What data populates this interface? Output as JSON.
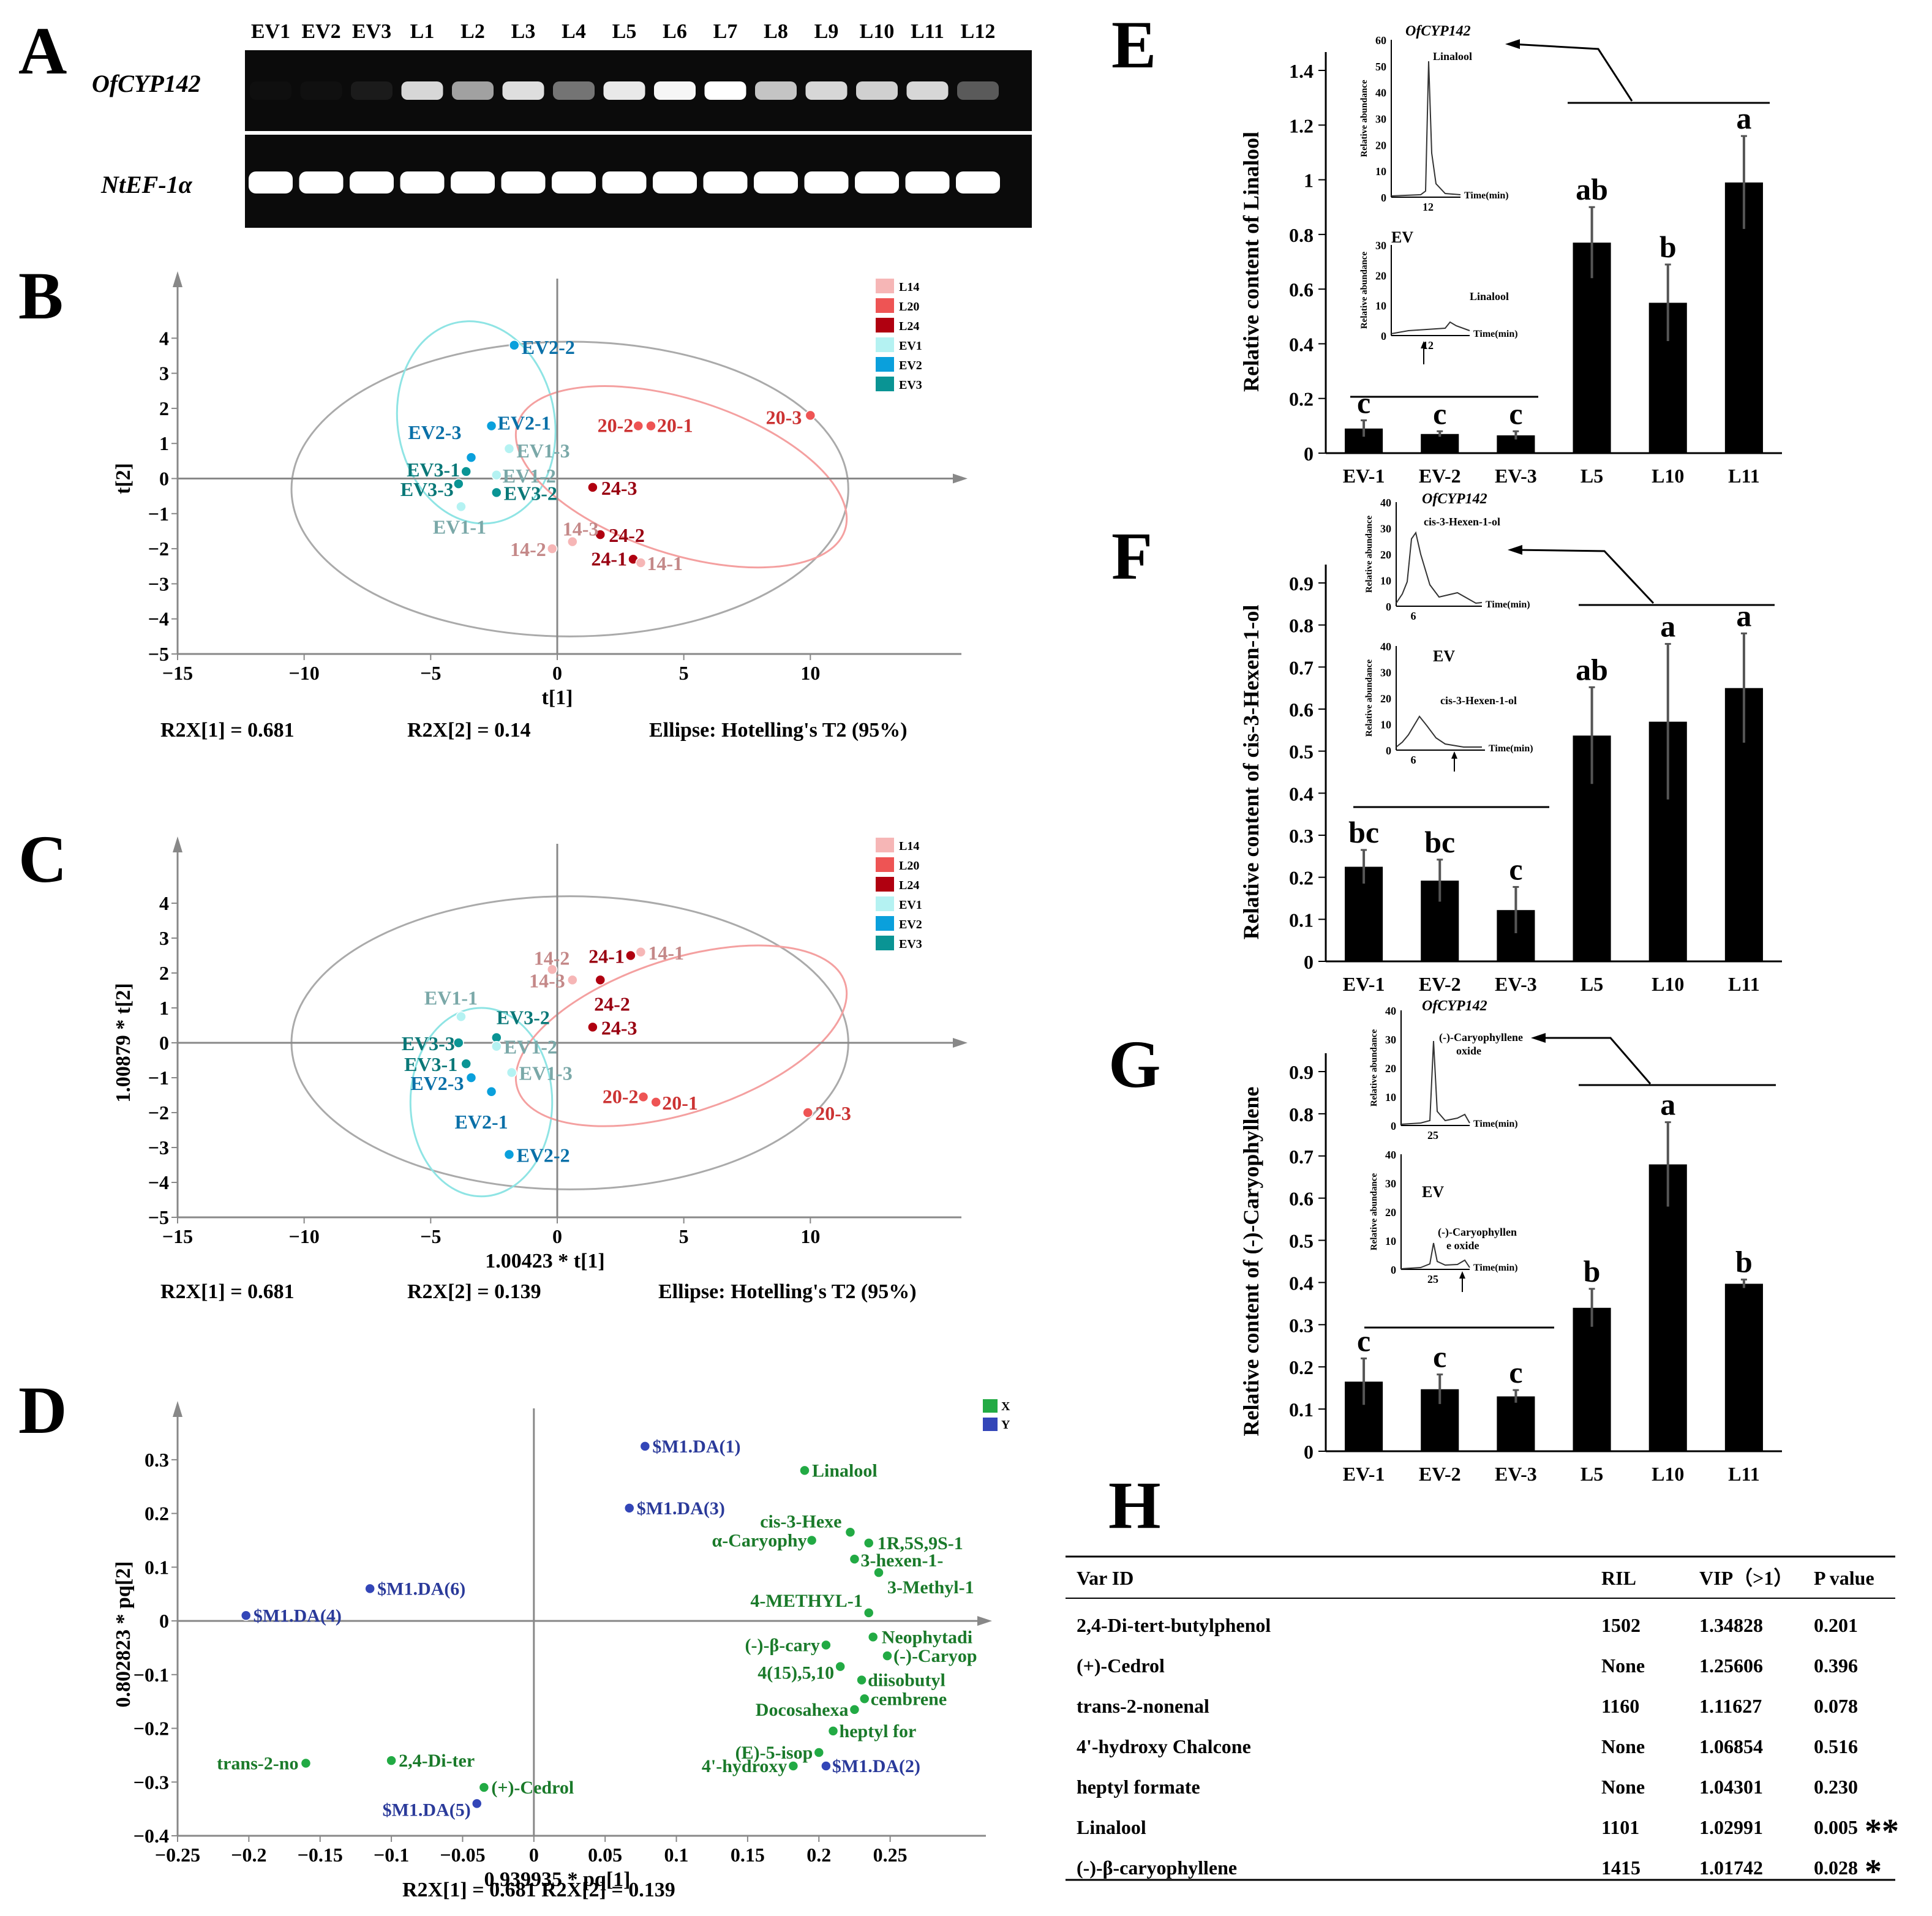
{
  "colors": {
    "L14": "#f6b6b6",
    "L20": "#ee5454",
    "L24": "#b00010",
    "EV1": "#b4f2f2",
    "EV2": "#0aa0dc",
    "EV3": "#0a9494",
    "X": "#22aa44",
    "Y": "#3346b8",
    "ellipseGray": "#aaaaaa",
    "ellipseCyan": "#8fe4e4",
    "ellipsePink": "#f4a0a0",
    "lblL14": "#c48888",
    "lblL20": "#cc3333",
    "lblL24": "#990011",
    "lblEV1": "#7aa8a8",
    "lblEV2": "#0a70a8",
    "lblEV3": "#0a7878",
    "lblX": "#1a7a2a",
    "lblY": "#2a3a9a"
  },
  "panels": {
    "A": "A",
    "B": "B",
    "C": "C",
    "D": "D",
    "E": "E",
    "F": "F",
    "G": "G",
    "H": "H"
  },
  "gel": {
    "lanes": [
      "EV1",
      "EV2",
      "EV3",
      "L1",
      "L2",
      "L3",
      "L4",
      "L5",
      "L6",
      "L7",
      "L8",
      "L9",
      "L10",
      "L11",
      "L12"
    ],
    "gene1": "OfCYP142",
    "gene2": "NtEF-1α",
    "gene1_intensity": [
      0.02,
      0.05,
      0.15,
      0.9,
      0.75,
      0.92,
      0.6,
      0.95,
      0.98,
      1.0,
      0.85,
      0.9,
      0.88,
      0.9,
      0.5
    ],
    "gene2_intensity": [
      1,
      1,
      1,
      1,
      1,
      1,
      1,
      1,
      1,
      1,
      1,
      1,
      1,
      1,
      1
    ]
  },
  "legend": {
    "items": [
      "L14",
      "L20",
      "L24",
      "EV1",
      "EV2",
      "EV3"
    ]
  },
  "chart_data": [
    {
      "id": "B",
      "type": "scatter",
      "xlabel": "t[1]",
      "ylabel": "t[2]",
      "xlim": [
        -15,
        15
      ],
      "ylim": [
        -5,
        5
      ],
      "xticks": [
        -15,
        -10,
        -5,
        0,
        5,
        10
      ],
      "yticks": [
        -5,
        -4,
        -3,
        -2,
        -1,
        0,
        1,
        2,
        3,
        4
      ],
      "footer": {
        "r2x1": "R2X[1] = 0.681",
        "r2x2": "R2X[2] = 0.14",
        "ellipse": "Ellipse: Hotelling's T2 (95%)"
      },
      "points": [
        {
          "label": "EV2-2",
          "g": "EV2",
          "x": -1.7,
          "y": 3.8
        },
        {
          "label": "EV2-1",
          "g": "EV2",
          "x": -2.6,
          "y": 1.5
        },
        {
          "label": "EV2-3",
          "g": "EV2",
          "x": -3.4,
          "y": 0.6
        },
        {
          "label": "EV1-3",
          "g": "EV1",
          "x": -1.9,
          "y": 0.85
        },
        {
          "label": "EV1-2",
          "g": "EV1",
          "x": -2.4,
          "y": 0.1
        },
        {
          "label": "EV3-1",
          "g": "EV3",
          "x": -3.6,
          "y": 0.2
        },
        {
          "label": "EV3-3",
          "g": "EV3",
          "x": -3.9,
          "y": -0.15
        },
        {
          "label": "EV3-2",
          "g": "EV3",
          "x": -2.4,
          "y": -0.4
        },
        {
          "label": "EV1-1",
          "g": "EV1",
          "x": -3.8,
          "y": -0.8
        },
        {
          "label": "20-2",
          "g": "L20",
          "x": 3.2,
          "y": 1.5
        },
        {
          "label": "20-1",
          "g": "L20",
          "x": 3.7,
          "y": 1.5
        },
        {
          "label": "20-3",
          "g": "L20",
          "x": 10.0,
          "y": 1.8
        },
        {
          "label": "24-3",
          "g": "L24",
          "x": 1.4,
          "y": -0.25
        },
        {
          "label": "24-2",
          "g": "L24",
          "x": 1.7,
          "y": -1.6
        },
        {
          "label": "24-1",
          "g": "L24",
          "x": 3.0,
          "y": -2.3
        },
        {
          "label": "14-3",
          "g": "L14",
          "x": 0.6,
          "y": -1.8
        },
        {
          "label": "14-2",
          "g": "L14",
          "x": -0.2,
          "y": -2.0
        },
        {
          "label": "14-1",
          "g": "L14",
          "x": 3.3,
          "y": -2.4
        }
      ]
    },
    {
      "id": "C",
      "type": "scatter",
      "xlabel": "1.00423 * t[1]",
      "ylabel": "1.00879 * t[2]",
      "xlim": [
        -15,
        15
      ],
      "ylim": [
        -5,
        5
      ],
      "xticks": [
        -15,
        -10,
        -5,
        0,
        5,
        10
      ],
      "yticks": [
        -5,
        -4,
        -3,
        -2,
        -1,
        0,
        1,
        2,
        3,
        4
      ],
      "footer": {
        "r2x1": "R2X[1] = 0.681",
        "r2x2": "R2X[2] = 0.139",
        "ellipse": "Ellipse: Hotelling's T2 (95%)"
      },
      "points": [
        {
          "label": "14-2",
          "g": "L14",
          "x": -0.2,
          "y": 2.1
        },
        {
          "label": "24-1",
          "g": "L24",
          "x": 2.9,
          "y": 2.5
        },
        {
          "label": "14-1",
          "g": "L14",
          "x": 3.3,
          "y": 2.6
        },
        {
          "label": "14-3",
          "g": "L14",
          "x": 0.6,
          "y": 1.8
        },
        {
          "label": "24-2",
          "g": "L24",
          "x": 1.7,
          "y": 1.8
        },
        {
          "label": "24-3",
          "g": "L24",
          "x": 1.4,
          "y": 0.45
        },
        {
          "label": "EV1-1",
          "g": "EV1",
          "x": -3.8,
          "y": 0.75
        },
        {
          "label": "EV3-2",
          "g": "EV3",
          "x": -2.4,
          "y": 0.15
        },
        {
          "label": "EV3-3",
          "g": "EV3",
          "x": -3.9,
          "y": 0
        },
        {
          "label": "EV1-2",
          "g": "EV1",
          "x": -2.4,
          "y": -0.1
        },
        {
          "label": "EV3-1",
          "g": "EV3",
          "x": -3.6,
          "y": -0.6
        },
        {
          "label": "EV1-3",
          "g": "EV1",
          "x": -1.8,
          "y": -0.85
        },
        {
          "label": "EV2-3",
          "g": "EV2",
          "x": -3.4,
          "y": -1.0
        },
        {
          "label": "EV2-1",
          "g": "EV2",
          "x": -2.6,
          "y": -1.4
        },
        {
          "label": "20-2",
          "g": "L20",
          "x": 3.4,
          "y": -1.55
        },
        {
          "label": "20-1",
          "g": "L20",
          "x": 3.9,
          "y": -1.7
        },
        {
          "label": "20-3",
          "g": "L20",
          "x": 9.9,
          "y": -2.0
        },
        {
          "label": "EV2-2",
          "g": "EV2",
          "x": -1.9,
          "y": -3.2
        }
      ]
    },
    {
      "id": "D",
      "type": "scatter",
      "xlabel": "0.939935 * pq[1]",
      "ylabel": "0.802823 * pq[2]",
      "xlim": [
        -0.25,
        0.3
      ],
      "ylim": [
        -0.4,
        0.35
      ],
      "xticks": [
        -0.25,
        -0.2,
        -0.15,
        -0.1,
        -0.05,
        0,
        0.05,
        0.1,
        0.15,
        0.2,
        0.25
      ],
      "yticks": [
        -0.4,
        -0.3,
        -0.2,
        -0.1,
        0,
        0.1,
        0.2,
        0.3
      ],
      "footer": "R2X[1] = 0.681 R2X[2] = 0.139",
      "legend": [
        "X",
        "Y"
      ],
      "points": [
        {
          "label": "$M1.DA(1)",
          "g": "Y",
          "x": 0.078,
          "y": 0.325
        },
        {
          "label": "$M1.DA(3)",
          "g": "Y",
          "x": 0.067,
          "y": 0.21
        },
        {
          "label": "$M1.DA(6)",
          "g": "Y",
          "x": -0.115,
          "y": 0.06
        },
        {
          "label": "$M1.DA(4)",
          "g": "Y",
          "x": -0.202,
          "y": 0.01
        },
        {
          "label": "$M1.DA(5)",
          "g": "Y",
          "x": -0.04,
          "y": -0.34
        },
        {
          "label": "$M1.DA(2)",
          "g": "Y",
          "x": 0.205,
          "y": -0.27
        },
        {
          "label": "Linalool",
          "g": "X",
          "x": 0.19,
          "y": 0.28
        },
        {
          "label": "cis-3-Hexe",
          "g": "X",
          "x": 0.222,
          "y": 0.165
        },
        {
          "label": "1R,5S,9S-1",
          "g": "X",
          "x": 0.235,
          "y": 0.145
        },
        {
          "label": "α-Caryophy",
          "g": "X",
          "x": 0.195,
          "y": 0.15
        },
        {
          "label": "3-hexen-1-",
          "g": "X",
          "x": 0.225,
          "y": 0.115
        },
        {
          "label": "3-Methyl-1",
          "g": "X",
          "x": 0.242,
          "y": 0.09
        },
        {
          "label": "4-METHYL-1",
          "g": "X",
          "x": 0.235,
          "y": 0.015
        },
        {
          "label": "Neophytadi",
          "g": "X",
          "x": 0.238,
          "y": -0.03
        },
        {
          "label": "(-)-β-cary",
          "g": "X",
          "x": 0.205,
          "y": -0.045
        },
        {
          "label": "(-)-Caryop",
          "g": "X",
          "x": 0.248,
          "y": -0.065
        },
        {
          "label": "4(15),5,10",
          "g": "X",
          "x": 0.215,
          "y": -0.085
        },
        {
          "label": "diisobutyl",
          "g": "X",
          "x": 0.23,
          "y": -0.11
        },
        {
          "label": "cembrene",
          "g": "X",
          "x": 0.232,
          "y": -0.145
        },
        {
          "label": "Docosahexa",
          "g": "X",
          "x": 0.225,
          "y": -0.165
        },
        {
          "label": "heptyl for",
          "g": "X",
          "x": 0.21,
          "y": -0.205
        },
        {
          "label": "(E)-5-isop",
          "g": "X",
          "x": 0.2,
          "y": -0.245
        },
        {
          "label": "4'-hydroxy",
          "g": "X",
          "x": 0.182,
          "y": -0.27
        },
        {
          "label": "trans-2-no",
          "g": "X",
          "x": -0.16,
          "y": -0.265
        },
        {
          "label": "2,4-Di-ter",
          "g": "X",
          "x": -0.1,
          "y": -0.26
        },
        {
          "label": "(+)-Cedrol",
          "g": "X",
          "x": -0.035,
          "y": -0.31
        }
      ]
    },
    {
      "id": "E",
      "type": "bar",
      "ylabel": "Relative content of Linalool",
      "categories": [
        "EV-1",
        "EV-2",
        "EV-3",
        "L5",
        "L10",
        "L11"
      ],
      "values": [
        0.09,
        0.07,
        0.065,
        0.77,
        0.55,
        0.99
      ],
      "errors": [
        0.03,
        0.01,
        0.015,
        0.13,
        0.14,
        0.17
      ],
      "letters": [
        "c",
        "c",
        "c",
        "ab",
        "b",
        "a"
      ],
      "ylim": [
        0,
        1.4
      ],
      "yticks": [
        0,
        0.2,
        0.4,
        0.6,
        0.8,
        1,
        1.2,
        1.4
      ]
    },
    {
      "id": "F",
      "type": "bar",
      "ylabel": "Relative content of cis-3-Hexen-1-ol",
      "categories": [
        "EV-1",
        "EV-2",
        "EV-3",
        "L5",
        "L10",
        "L11"
      ],
      "values": [
        0.225,
        0.192,
        0.122,
        0.537,
        0.57,
        0.65
      ],
      "errors": [
        0.04,
        0.05,
        0.055,
        0.115,
        0.185,
        0.13
      ],
      "letters": [
        "bc",
        "bc",
        "c",
        "ab",
        "a",
        "a"
      ],
      "ylim": [
        0,
        0.9
      ],
      "yticks": [
        0,
        0.1,
        0.2,
        0.3,
        0.4,
        0.5,
        0.6,
        0.7,
        0.8,
        0.9
      ]
    },
    {
      "id": "G",
      "type": "bar",
      "ylabel": "Relative content of (-)-Caryophyllene",
      "categories": [
        "EV-1",
        "EV-2",
        "EV-3",
        "L5",
        "L10",
        "L11"
      ],
      "values": [
        0.165,
        0.147,
        0.13,
        0.34,
        0.68,
        0.397
      ],
      "errors": [
        0.055,
        0.035,
        0.015,
        0.045,
        0.1,
        0.01
      ],
      "letters": [
        "c",
        "c",
        "c",
        "b",
        "a",
        "b"
      ],
      "ylim": [
        0,
        0.9
      ],
      "yticks": [
        0,
        0.1,
        0.2,
        0.3,
        0.4,
        0.5,
        0.6,
        0.7,
        0.8,
        0.9
      ]
    }
  ],
  "insets": {
    "E": {
      "gene": "OfCYP142",
      "ev": "EV",
      "ylabel": "Relative abundance",
      "xlabel": "Time(min)",
      "peak": "Linalool",
      "ticks1": [
        "60",
        "50",
        "40",
        "30",
        "20",
        "10",
        "0"
      ],
      "ticks2": [
        "30",
        "20",
        "10",
        "0"
      ],
      "xtick": "12"
    },
    "F": {
      "gene": "OfCYP142",
      "ev": "EV",
      "ylabel": "Relative abundance",
      "xlabel": "Time(min)",
      "peak": "cis-3-Hexen-1-ol",
      "ticks1": [
        "40",
        "30",
        "20",
        "10",
        "0"
      ],
      "ticks2": [
        "40",
        "30",
        "20",
        "10",
        "0"
      ],
      "xtick": "6"
    },
    "G": {
      "gene": "OfCYP142",
      "ev": "EV",
      "ylabel": "Relative abundance",
      "xlabel": "Time(min)",
      "peak1": "(-)-Caryophyllene",
      "peak1b": "oxide",
      "peak2": "(-)-Caryophyllen",
      "peak2b": "e oxide",
      "ticks1": [
        "40",
        "30",
        "20",
        "10",
        "0"
      ],
      "ticks2": [
        "40",
        "30",
        "20",
        "10",
        "0"
      ],
      "xtick": "25"
    }
  },
  "table": {
    "headers": [
      "Var ID",
      "RIL",
      "VIP（>1）",
      "P value"
    ],
    "rows": [
      {
        "name": "2,4-Di-tert-butylphenol",
        "ril": "1502",
        "vip": "1.34828",
        "p": "0.201",
        "sig": ""
      },
      {
        "name": "(+)-Cedrol",
        "ril": "None",
        "vip": "1.25606",
        "p": "0.396",
        "sig": ""
      },
      {
        "name": "trans-2-nonenal",
        "ril": "1160",
        "vip": "1.11627",
        "p": "0.078",
        "sig": ""
      },
      {
        "name": "4'-hydroxy Chalcone",
        "ril": "None",
        "vip": "1.06854",
        "p": "0.516",
        "sig": ""
      },
      {
        "name": "heptyl formate",
        "ril": "None",
        "vip": "1.04301",
        "p": "0.230",
        "sig": ""
      },
      {
        "name": "Linalool",
        "ril": "1101",
        "vip": "1.02991",
        "p": "0.005",
        "sig": "**"
      },
      {
        "name": "(-)-β-caryophyllene",
        "ril": "1415",
        "vip": "1.01742",
        "p": "0.028",
        "sig": "*"
      }
    ]
  }
}
